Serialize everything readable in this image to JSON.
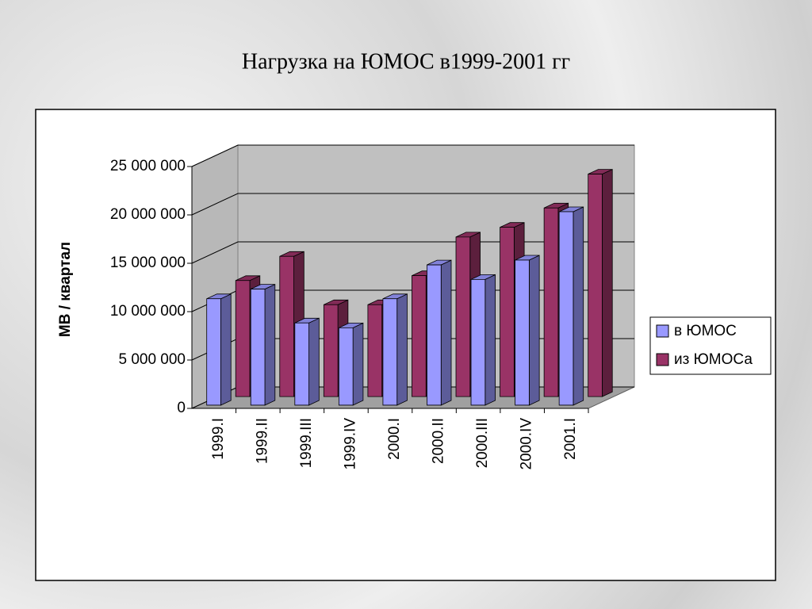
{
  "chart_data": {
    "type": "bar3d",
    "title": "Нагрузка на ЮМОС в1999-2001 гг",
    "y_label": "МВ / квартал",
    "categories": [
      "1999.I",
      "1999.II",
      "1999.III",
      "1999.IV",
      "2000.I",
      "2000.II",
      "2000.III",
      "2000.IV",
      "2001.I"
    ],
    "series": [
      {
        "name": "в ЮМОС",
        "color": "#9999ff",
        "values": [
          11000000,
          12000000,
          8500000,
          8000000,
          11000000,
          14500000,
          13000000,
          15000000,
          20000000
        ]
      },
      {
        "name": "из ЮМОСа",
        "color": "#993366",
        "values": [
          12000000,
          14500000,
          9500000,
          9500000,
          12500000,
          16500000,
          17500000,
          19500000,
          23000000
        ]
      }
    ],
    "ylim": [
      0,
      25000000
    ],
    "yticks": [
      0,
      {
        "value": 5000000,
        "label": "5 000 000"
      },
      {
        "value": 10000000,
        "label": "10 000 000"
      },
      {
        "value": 15000000,
        "label": "15 000 000"
      },
      {
        "value": 20000000,
        "label": "20 000 000"
      },
      {
        "value": 25000000,
        "label": "25 000 000"
      }
    ],
    "grid": true,
    "legend": "right"
  }
}
